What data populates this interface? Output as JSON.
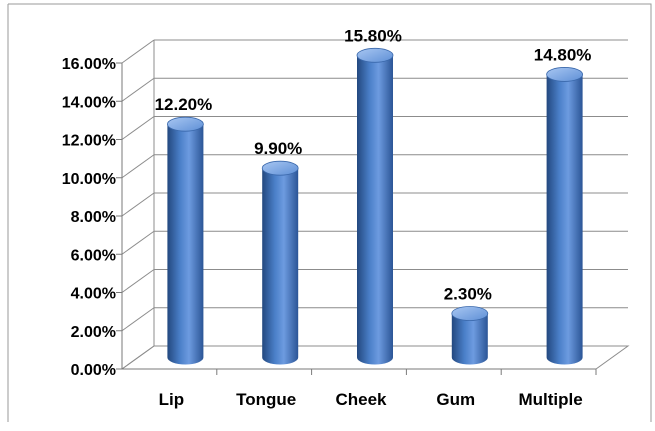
{
  "chart_data": {
    "type": "bar",
    "title": "",
    "xlabel": "",
    "ylabel": "",
    "categories": [
      "Lip",
      "Tongue",
      "Cheek",
      "Gum",
      "Multiple"
    ],
    "values": [
      12.2,
      9.9,
      15.8,
      2.3,
      14.8
    ],
    "data_labels": [
      "12.20%",
      "9.90%",
      "15.80%",
      "2.30%",
      "14.80%"
    ],
    "y_ticks": [
      "0.00%",
      "2.00%",
      "4.00%",
      "6.00%",
      "8.00%",
      "10.00%",
      "12.00%",
      "14.00%",
      "16.00%"
    ],
    "ylim": [
      0,
      16
    ],
    "grid": true,
    "legend": "none",
    "bar_style": "3d-cylinder",
    "colors": {
      "bar": "#4a7fc8",
      "bar_dark": "#23487f",
      "bar_light": "#8fb4ea",
      "grid": "#8c8c8c",
      "border": "#9a9a9a"
    }
  }
}
